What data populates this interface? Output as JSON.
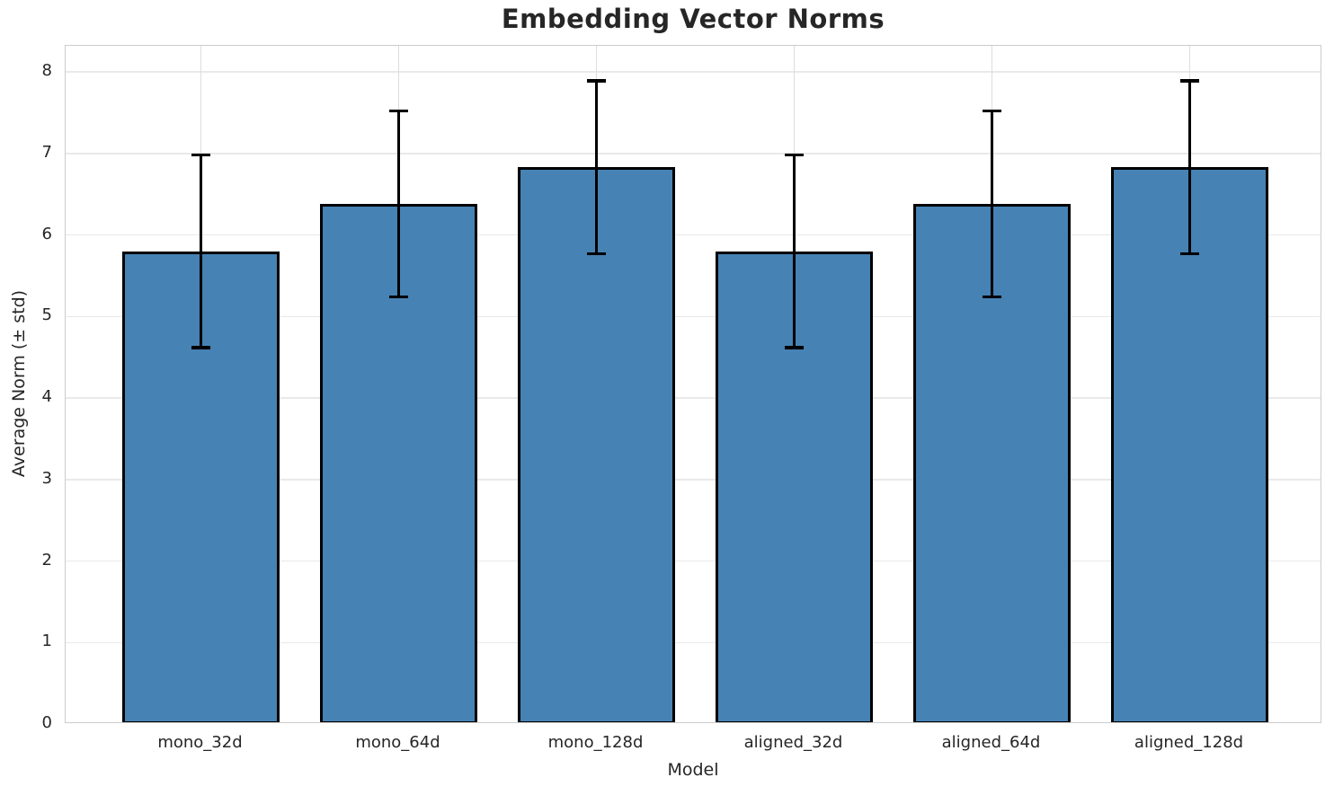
{
  "chart_data": {
    "type": "bar",
    "title": "Embedding Vector Norms",
    "xlabel": "Model",
    "ylabel": "Average Norm (± std)",
    "categories": [
      "mono_32d",
      "mono_64d",
      "mono_128d",
      "aligned_32d",
      "aligned_64d",
      "aligned_128d"
    ],
    "values": [
      5.8,
      6.38,
      6.83,
      5.8,
      6.38,
      6.83
    ],
    "errors": [
      1.18,
      1.14,
      1.06,
      1.18,
      1.14,
      1.06
    ],
    "yticks": [
      0,
      1,
      2,
      3,
      4,
      5,
      6,
      7,
      8
    ],
    "ylim": [
      0,
      8.32
    ],
    "grid": true,
    "legend": "none",
    "bar_color": "#4682B4",
    "bar_edge_color": "#000000",
    "error_color": "#000000",
    "grid_color": "#e9e9e9",
    "spine_color": "#cccccc",
    "text_color": "#262626",
    "background_color": "#ffffff"
  }
}
